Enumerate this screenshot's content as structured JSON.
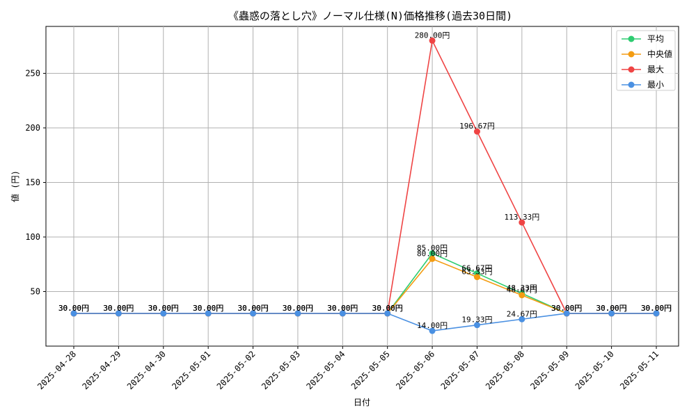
{
  "chart_data": {
    "type": "line",
    "title": "《蟲惑の落とし穴》ノーマル仕様(N)価格推移(過去30日間)",
    "xlabel": "日付",
    "ylabel": "値 (円)",
    "ylim": [
      0,
      293
    ],
    "yticks": [
      50,
      100,
      150,
      200,
      250
    ],
    "grid": true,
    "legend_position": "top-right",
    "label_suffix": "円",
    "categories": [
      "2025-04-28",
      "2025-04-29",
      "2025-04-30",
      "2025-05-01",
      "2025-05-02",
      "2025-05-03",
      "2025-05-04",
      "2025-05-05",
      "2025-05-06",
      "2025-05-07",
      "2025-05-08",
      "2025-05-09",
      "2025-05-10",
      "2025-05-11"
    ],
    "series": [
      {
        "name": "平均",
        "color": "#2ecc71",
        "values": [
          30,
          30,
          30,
          30,
          30,
          30,
          30,
          30,
          85.0,
          66.67,
          48.33,
          30,
          30,
          30
        ]
      },
      {
        "name": "中央値",
        "color": "#f39c12",
        "values": [
          30,
          30,
          30,
          30,
          30,
          30,
          30,
          30,
          80.0,
          63.33,
          46.67,
          30,
          30,
          30
        ]
      },
      {
        "name": "最大",
        "color": "#ef4444",
        "values": [
          30,
          30,
          30,
          30,
          30,
          30,
          30,
          30,
          280.0,
          196.67,
          113.33,
          30,
          30,
          30
        ]
      },
      {
        "name": "最小",
        "color": "#4a90e2",
        "values": [
          30,
          30,
          30,
          30,
          30,
          30,
          30,
          30,
          14.0,
          19.33,
          24.67,
          30,
          30,
          30
        ]
      }
    ]
  }
}
